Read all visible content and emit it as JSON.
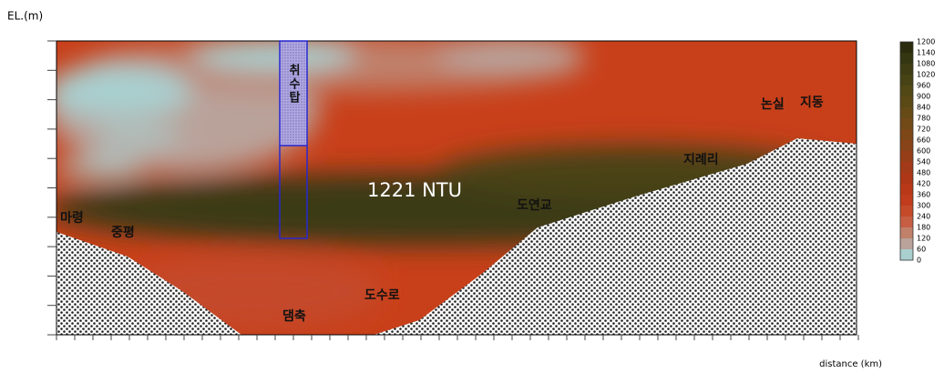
{
  "y_axis_label": "EL.(m)",
  "x_axis_label": "distance (km)",
  "section": {
    "annotation": "1221 NTU",
    "tower_label": "취수탑",
    "places": [
      "마령",
      "중평",
      "댐축",
      "도수로",
      "도연교",
      "지례리",
      "논실",
      "지동"
    ]
  },
  "colorbar": {
    "ticks": [
      1200,
      1140,
      1080,
      1020,
      960,
      900,
      840,
      780,
      720,
      660,
      600,
      540,
      480,
      420,
      360,
      300,
      240,
      180,
      120,
      60,
      0
    ],
    "colors": [
      "#2b2b0e",
      "#343511",
      "#3e3c12",
      "#474314",
      "#514815",
      "#5b4a16",
      "#664b17",
      "#714a18",
      "#7d4718",
      "#894318",
      "#963e18",
      "#a33a18",
      "#ae3718",
      "#b83818",
      "#c03c1c",
      "#c44a2a",
      "#c65e44",
      "#c0806a",
      "#b9a29a",
      "#a9cfcf"
    ]
  }
}
